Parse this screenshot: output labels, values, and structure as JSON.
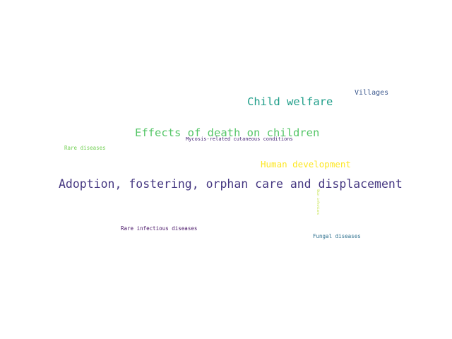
{
  "words": [
    {
      "key": "adoption",
      "text": "Adoption, fostering, orphan care and displacement",
      "color": "#453781"
    },
    {
      "key": "effects",
      "text": "Effects of death on children",
      "color": "#55c667"
    },
    {
      "key": "child_welfare",
      "text": "Child welfare",
      "color": "#1f9e89"
    },
    {
      "key": "human_dev",
      "text": "Human development",
      "color": "#fde725"
    },
    {
      "key": "villages",
      "text": "Villages",
      "color": "#39568c"
    },
    {
      "key": "mycosis",
      "text": "Mycosis-related cutaneous conditions",
      "color": "#482677"
    },
    {
      "key": "rare_diseases",
      "text": "Rare diseases",
      "color": "#73d055"
    },
    {
      "key": "rare_infectious",
      "text": "Rare infectious diseases",
      "color": "#481567"
    },
    {
      "key": "fungal",
      "text": "Fungal diseases",
      "color": "#2d708e"
    },
    {
      "key": "vertical_small",
      "text": "Skin infections",
      "color": "#b8de29"
    }
  ]
}
